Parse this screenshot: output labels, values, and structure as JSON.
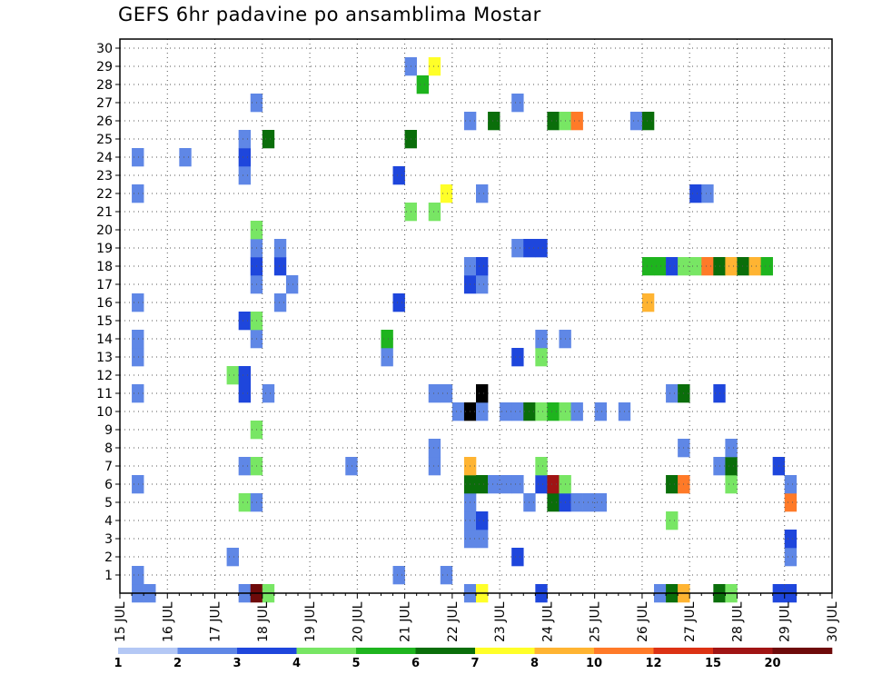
{
  "chart_data": {
    "type": "heatmap",
    "title": "GEFS 6hr padavine po ansamblima Mostar",
    "x_ticks": [
      "15 JUL",
      "16 JUL",
      "17 JUL",
      "18 JUL",
      "19 JUL",
      "20 JUL",
      "21 JUL",
      "22 JUL",
      "23 JUL",
      "24 JUL",
      "25 JUL",
      "26 JUL",
      "27 JUL",
      "28 JUL",
      "29 JUL",
      "30 JUL"
    ],
    "y_ticks": [
      "1",
      "2",
      "3",
      "4",
      "5",
      "6",
      "7",
      "8",
      "9",
      "10",
      "11",
      "12",
      "13",
      "14",
      "15",
      "16",
      "17",
      "18",
      "19",
      "20",
      "21",
      "22",
      "23",
      "24",
      "25",
      "26",
      "27",
      "28",
      "29",
      "30"
    ],
    "step_hours": 6,
    "grid": true,
    "color_scale": {
      "labels": [
        "1",
        "2",
        "3",
        "4",
        "5",
        "6",
        "7",
        "8",
        "10",
        "12",
        "15",
        "20"
      ],
      "colors": [
        "#b4c8f5",
        "#5f87e6",
        "#1e46dc",
        "#78e664",
        "#1eb41e",
        "#0a6e0a",
        "#ffff28",
        "#ffb432",
        "#ff7a28",
        "#dc3214",
        "#a01414",
        "#6e0a0a"
      ]
    },
    "cells": [
      [
        1,
        0,
        1
      ],
      [
        2,
        0,
        1
      ],
      [
        1,
        1,
        1
      ],
      [
        1,
        6,
        1
      ],
      [
        1,
        11,
        1
      ],
      [
        1,
        13,
        1
      ],
      [
        1,
        14,
        1
      ],
      [
        1,
        16,
        1
      ],
      [
        1,
        22,
        1
      ],
      [
        1,
        24,
        1
      ],
      [
        5,
        24,
        1
      ],
      [
        9,
        12,
        3
      ],
      [
        9,
        2,
        1
      ],
      [
        10,
        0,
        1
      ],
      [
        10,
        5,
        3
      ],
      [
        10,
        7,
        1
      ],
      [
        10,
        11,
        2
      ],
      [
        10,
        12,
        2
      ],
      [
        10,
        15,
        2
      ],
      [
        10,
        23,
        1
      ],
      [
        10,
        24,
        2
      ],
      [
        10,
        25,
        1
      ],
      [
        11,
        0,
        11
      ],
      [
        11,
        5,
        1
      ],
      [
        11,
        7,
        3
      ],
      [
        11,
        9,
        3
      ],
      [
        11,
        14,
        1
      ],
      [
        11,
        15,
        3
      ],
      [
        11,
        17,
        1
      ],
      [
        11,
        18,
        2
      ],
      [
        11,
        19,
        1
      ],
      [
        11,
        20,
        3
      ],
      [
        11,
        27,
        1
      ],
      [
        12,
        0,
        3
      ],
      [
        12,
        11,
        1
      ],
      [
        12,
        25,
        5
      ],
      [
        13,
        16,
        1
      ],
      [
        13,
        18,
        2
      ],
      [
        13,
        19,
        1
      ],
      [
        14,
        17,
        1
      ],
      [
        19,
        7,
        1
      ],
      [
        22,
        13,
        1
      ],
      [
        22,
        14,
        4
      ],
      [
        23,
        1,
        1
      ],
      [
        23,
        16,
        2
      ],
      [
        23,
        23,
        2
      ],
      [
        24,
        21,
        3
      ],
      [
        24,
        25,
        5
      ],
      [
        24,
        29,
        1
      ],
      [
        25,
        28,
        4
      ],
      [
        26,
        7,
        1
      ],
      [
        26,
        8,
        1
      ],
      [
        26,
        11,
        1
      ],
      [
        26,
        21,
        3
      ],
      [
        26,
        29,
        6
      ],
      [
        27,
        1,
        1
      ],
      [
        27,
        11,
        1
      ],
      [
        27,
        22,
        6
      ],
      [
        28,
        10,
        1
      ],
      [
        29,
        0,
        1
      ],
      [
        29,
        3,
        1
      ],
      [
        29,
        4,
        1
      ],
      [
        29,
        5,
        1
      ],
      [
        29,
        6,
        5
      ],
      [
        29,
        7,
        7
      ],
      [
        29,
        10,
        15
      ],
      [
        29,
        17,
        2
      ],
      [
        29,
        18,
        1
      ],
      [
        29,
        26,
        1
      ],
      [
        30,
        0,
        6
      ],
      [
        30,
        3,
        1
      ],
      [
        30,
        4,
        2
      ],
      [
        30,
        6,
        5
      ],
      [
        30,
        10,
        1
      ],
      [
        30,
        11,
        15
      ],
      [
        30,
        17,
        1
      ],
      [
        30,
        18,
        2
      ],
      [
        30,
        22,
        1
      ],
      [
        31,
        6,
        1
      ],
      [
        31,
        26,
        5
      ],
      [
        32,
        6,
        1
      ],
      [
        32,
        10,
        1
      ],
      [
        33,
        2,
        2
      ],
      [
        33,
        6,
        1
      ],
      [
        33,
        10,
        1
      ],
      [
        33,
        13,
        2
      ],
      [
        33,
        19,
        1
      ],
      [
        33,
        27,
        1
      ],
      [
        34,
        5,
        1
      ],
      [
        34,
        10,
        5
      ],
      [
        34,
        19,
        2
      ],
      [
        35,
        0,
        2
      ],
      [
        35,
        6,
        2
      ],
      [
        35,
        7,
        3
      ],
      [
        35,
        10,
        3
      ],
      [
        35,
        13,
        3
      ],
      [
        35,
        14,
        1
      ],
      [
        35,
        19,
        2
      ],
      [
        36,
        5,
        5
      ],
      [
        36,
        6,
        10
      ],
      [
        36,
        10,
        4
      ],
      [
        36,
        26,
        5
      ],
      [
        37,
        5,
        2
      ],
      [
        37,
        6,
        3
      ],
      [
        37,
        10,
        3
      ],
      [
        37,
        14,
        1
      ],
      [
        37,
        26,
        3
      ],
      [
        38,
        5,
        1
      ],
      [
        38,
        10,
        1
      ],
      [
        38,
        26,
        8
      ],
      [
        39,
        5,
        1
      ],
      [
        40,
        5,
        1
      ],
      [
        40,
        10,
        1
      ],
      [
        42,
        10,
        1
      ],
      [
        43,
        26,
        1
      ],
      [
        44,
        16,
        7
      ],
      [
        44,
        18,
        4
      ],
      [
        44,
        26,
        5
      ],
      [
        45,
        0,
        1
      ],
      [
        45,
        18,
        4
      ],
      [
        46,
        0,
        5
      ],
      [
        46,
        4,
        3
      ],
      [
        46,
        6,
        5
      ],
      [
        46,
        11,
        1
      ],
      [
        46,
        18,
        2
      ],
      [
        47,
        0,
        7
      ],
      [
        47,
        6,
        8
      ],
      [
        47,
        8,
        1
      ],
      [
        47,
        11,
        5
      ],
      [
        47,
        18,
        3
      ],
      [
        48,
        18,
        3
      ],
      [
        48,
        22,
        2
      ],
      [
        49,
        18,
        8
      ],
      [
        49,
        22,
        1
      ],
      [
        50,
        0,
        5
      ],
      [
        50,
        7,
        1
      ],
      [
        50,
        11,
        2
      ],
      [
        50,
        18,
        5
      ],
      [
        51,
        0,
        3
      ],
      [
        51,
        6,
        3
      ],
      [
        51,
        7,
        5
      ],
      [
        51,
        8,
        1
      ],
      [
        51,
        18,
        7
      ],
      [
        52,
        18,
        5
      ],
      [
        53,
        18,
        7
      ],
      [
        54,
        18,
        4
      ],
      [
        55,
        0,
        2
      ],
      [
        55,
        7,
        2
      ],
      [
        56,
        0,
        2
      ],
      [
        56,
        2,
        1
      ],
      [
        56,
        3,
        2
      ],
      [
        56,
        5,
        8
      ],
      [
        56,
        6,
        1
      ]
    ]
  }
}
